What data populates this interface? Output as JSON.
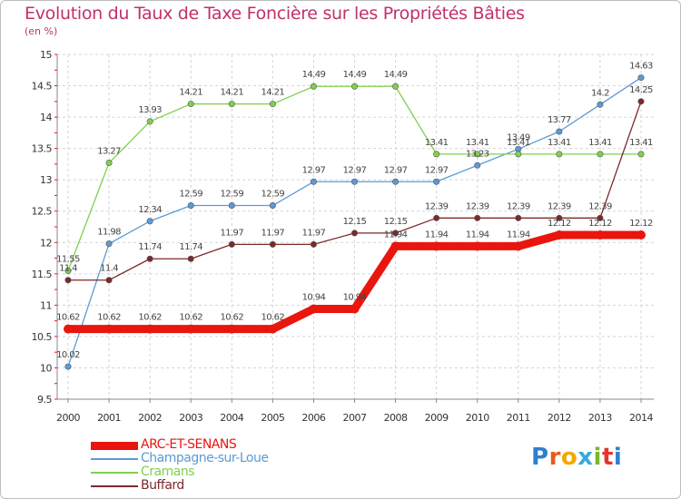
{
  "chart_data": {
    "type": "line",
    "title": "Evolution du Taux de Taxe Foncière sur les Propriétés Bâties",
    "subtitle": "(en %)",
    "x": [
      "2000",
      "2001",
      "2002",
      "2003",
      "2004",
      "2005",
      "2006",
      "2007",
      "2008",
      "2009",
      "2010",
      "2011",
      "2012",
      "2013",
      "2014"
    ],
    "ylim": [
      9.5,
      15
    ],
    "yticks": [
      "9.5",
      "10",
      "10.5",
      "11",
      "11.5",
      "12",
      "12.5",
      "13",
      "13.5",
      "14",
      "14.5",
      "15"
    ],
    "grid": true,
    "series": [
      {
        "name": "ARC-ET-SENANS",
        "color": "#e8160f",
        "values": [
          10.62,
          10.62,
          10.62,
          10.62,
          10.62,
          10.62,
          10.94,
          10.94,
          11.94,
          11.94,
          11.94,
          11.94,
          12.12,
          12.12,
          12.12
        ],
        "labels": [
          "10.62",
          "10.62",
          "10.62",
          "10.62",
          "10.62",
          "10.62",
          "10.94",
          "10.94",
          "11.94",
          "11.94",
          "11.94",
          "11.94",
          "12.12",
          "12.12",
          "12.12"
        ]
      },
      {
        "name": "Champagne-sur-Loue",
        "color": "#5b9bd5",
        "values": [
          10.02,
          11.98,
          12.34,
          12.59,
          12.59,
          12.59,
          12.97,
          12.97,
          12.97,
          12.97,
          13.23,
          13.49,
          13.77,
          14.2,
          14.63
        ],
        "labels": [
          "10.02",
          "11.98",
          "12.34",
          "12.59",
          "12.59",
          "12.59",
          "12.97",
          "12.97",
          "12.97",
          "12.97",
          "13.23",
          "13.49",
          "13.77",
          "14.2",
          "14.63"
        ]
      },
      {
        "name": "Cramans",
        "color": "#80d04d",
        "values": [
          11.55,
          13.27,
          13.93,
          14.21,
          14.21,
          14.21,
          14.49,
          14.49,
          14.49,
          13.41,
          13.41,
          13.41,
          13.41,
          13.41,
          13.41
        ],
        "labels": [
          "11.55",
          "13.27",
          "13.93",
          "14.21",
          "14.21",
          "14.21",
          "14.49",
          "14.49",
          "14.49",
          "13.41",
          "13.41",
          "13.41",
          "13.41",
          "13.41",
          "13.41"
        ]
      },
      {
        "name": "Buffard",
        "color": "#7b2a2a",
        "values": [
          11.4,
          11.4,
          11.74,
          11.74,
          11.97,
          11.97,
          11.97,
          12.15,
          12.15,
          12.39,
          12.39,
          12.39,
          12.39,
          12.39,
          14.25
        ],
        "labels": [
          "11.4",
          "11.4",
          "11.74",
          "11.74",
          "11.97",
          "11.97",
          "11.97",
          "12.15",
          "12.15",
          "12.39",
          "12.39",
          "12.39",
          "12.39",
          "12.39",
          "14.25"
        ]
      }
    ]
  },
  "logo": {
    "text": "Proxiti",
    "letters": [
      "P",
      "r",
      "o",
      "x",
      "i",
      "t",
      "i"
    ],
    "colors": [
      "#2f7fd0",
      "#e85d1a",
      "#f2a900",
      "#3aa9d8",
      "#77b82a",
      "#e3352f",
      "#2f7fd0"
    ]
  }
}
